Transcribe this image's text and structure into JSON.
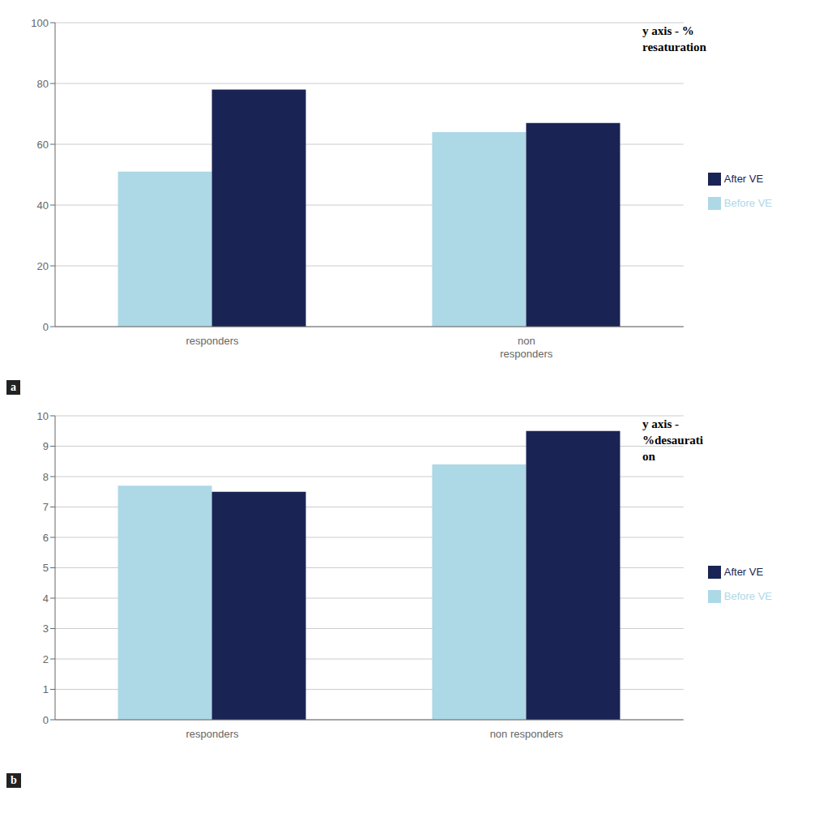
{
  "chart_data": [
    {
      "type": "bar",
      "y_label": "y axis - %\nresaturation",
      "annotations": [
        "a"
      ],
      "categories": [
        "responders",
        "non\nresponders"
      ],
      "series": [
        {
          "name": "Before VE",
          "color": "#add8e6",
          "values": [
            51,
            64
          ]
        },
        {
          "name": "After VE",
          "color": "#1a2454",
          "values": [
            78,
            67
          ]
        }
      ],
      "ylim": [
        0,
        100
      ],
      "yticks": [
        0,
        20,
        40,
        60,
        80,
        100
      ],
      "grid": true,
      "legend": "right"
    },
    {
      "type": "bar",
      "y_label": "y axis -\n%desaurati\non",
      "annotations": [
        "b"
      ],
      "categories": [
        "responders",
        "non responders"
      ],
      "series": [
        {
          "name": "Before VE",
          "color": "#add8e6",
          "values": [
            7.7,
            8.4
          ]
        },
        {
          "name": "After VE",
          "color": "#1a2454",
          "values": [
            7.5,
            9.5
          ]
        }
      ],
      "ylim": [
        0,
        10
      ],
      "yticks": [
        0,
        1,
        2,
        3,
        4,
        5,
        6,
        7,
        8,
        9,
        10
      ],
      "grid": true,
      "legend": "right"
    }
  ]
}
